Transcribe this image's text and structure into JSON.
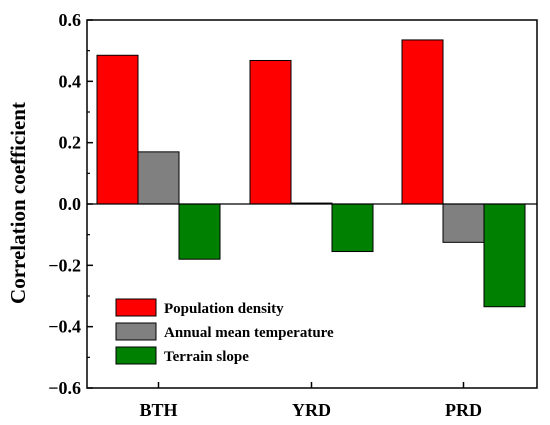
{
  "chart_data": {
    "type": "bar",
    "title": "",
    "xlabel": "",
    "ylabel": "Correlation coefficient",
    "categories": [
      "BTH",
      "YRD",
      "PRD"
    ],
    "ylim": [
      -0.6,
      0.6
    ],
    "yticks": [
      -0.6,
      -0.4,
      -0.2,
      0.0,
      0.2,
      0.4,
      0.6
    ],
    "ytick_labels": [
      "−0.6",
      "−0.4",
      "−0.2",
      "0.0",
      "0.2",
      "0.4",
      "0.6"
    ],
    "grid": false,
    "legend_position": "bottom-left",
    "series": [
      {
        "name": "Population density",
        "color": "#ff0000",
        "values": [
          0.485,
          0.468,
          0.535
        ]
      },
      {
        "name": "Annual mean temperature",
        "color": "#808080",
        "values": [
          0.17,
          0.003,
          -0.125
        ]
      },
      {
        "name": "Terrain slope",
        "color": "#008000",
        "values": [
          -0.18,
          -0.155,
          -0.335
        ]
      }
    ]
  }
}
